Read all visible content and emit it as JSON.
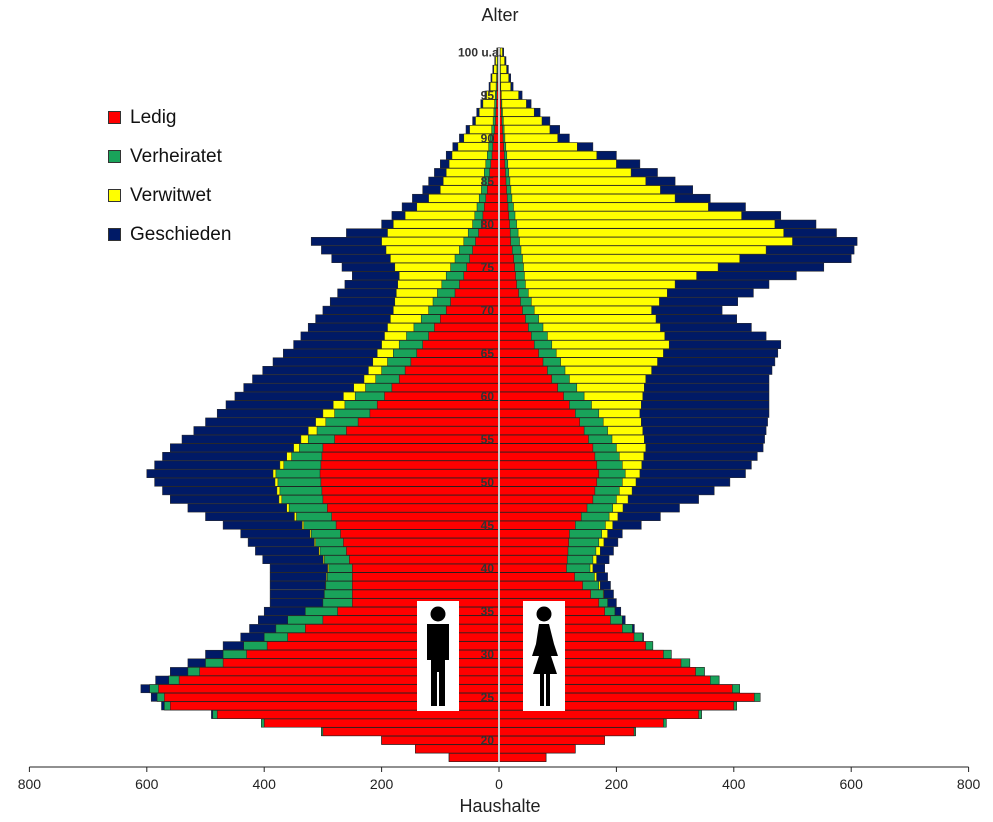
{
  "chart_data": {
    "type": "bar",
    "orientation": "horizontal-pyramid",
    "title": "Alter",
    "xlabel": "Haushalte",
    "ylabel": "Alter",
    "xlim": [
      -800,
      800
    ],
    "x_ticks": [
      -800,
      -600,
      -400,
      -200,
      0,
      200,
      400,
      600,
      800
    ],
    "x_tick_labels": [
      "800",
      "600",
      "400",
      "200",
      "0",
      "200",
      "400",
      "600",
      "800"
    ],
    "age_range": [
      18,
      100
    ],
    "age_tick_labels": [
      {
        "age": 100,
        "label": "100 u.a."
      },
      {
        "age": 95,
        "label": "95"
      },
      {
        "age": 90,
        "label": "90"
      },
      {
        "age": 85,
        "label": "85"
      },
      {
        "age": 80,
        "label": "80"
      },
      {
        "age": 75,
        "label": "75"
      },
      {
        "age": 70,
        "label": "70"
      },
      {
        "age": 65,
        "label": "65"
      },
      {
        "age": 60,
        "label": "60"
      },
      {
        "age": 55,
        "label": "55"
      },
      {
        "age": 50,
        "label": "50"
      },
      {
        "age": 45,
        "label": "45"
      },
      {
        "age": 40,
        "label": "40"
      },
      {
        "age": 35,
        "label": "35"
      },
      {
        "age": 30,
        "label": "30"
      },
      {
        "age": 25,
        "label": "25"
      },
      {
        "age": 20,
        "label": "20"
      }
    ],
    "series": [
      {
        "name": "Ledig",
        "color": "#ff0000"
      },
      {
        "name": "Verheiratet",
        "color": "#19a35a"
      },
      {
        "name": "Verwitwet",
        "color": "#ffff00"
      },
      {
        "name": "Geschieden",
        "color": "#001a66"
      }
    ],
    "legend_position": "top-left",
    "side_labels": {
      "left": "male",
      "right": "female"
    },
    "key_points_left": [
      {
        "age": 18,
        "Ledig": 85,
        "Verheiratet": 85,
        "Verwitwet": 85,
        "Geschieden": 85
      },
      {
        "age": 20,
        "Ledig": 200,
        "Verheiratet": 200,
        "Verwitwet": 200,
        "Geschieden": 200
      },
      {
        "age": 22,
        "Ledig": 400,
        "Verheiratet": 405,
        "Verwitwet": 405,
        "Geschieden": 405
      },
      {
        "age": 24,
        "Ledig": 560,
        "Verheiratet": 570,
        "Verwitwet": 570,
        "Geschieden": 575
      },
      {
        "age": 26,
        "Ledig": 580,
        "Verheiratet": 595,
        "Verwitwet": 595,
        "Geschieden": 610
      },
      {
        "age": 28,
        "Ledig": 510,
        "Verheiratet": 530,
        "Verwitwet": 530,
        "Geschieden": 560
      },
      {
        "age": 30,
        "Ledig": 430,
        "Verheiratet": 470,
        "Verwitwet": 470,
        "Geschieden": 500
      },
      {
        "age": 32,
        "Ledig": 360,
        "Verheiratet": 400,
        "Verwitwet": 400,
        "Geschieden": 440
      },
      {
        "age": 34,
        "Ledig": 300,
        "Verheiratet": 360,
        "Verwitwet": 360,
        "Geschieden": 410
      },
      {
        "age": 36,
        "Ledig": 250,
        "Verheiratet": 300,
        "Verwitwet": 300,
        "Geschieden": 390
      },
      {
        "age": 40,
        "Ledig": 250,
        "Verheiratet": 290,
        "Verwitwet": 292,
        "Geschieden": 390
      },
      {
        "age": 44,
        "Ledig": 270,
        "Verheiratet": 320,
        "Verwitwet": 322,
        "Geschieden": 440
      },
      {
        "age": 48,
        "Ledig": 300,
        "Verheiratet": 370,
        "Verwitwet": 375,
        "Geschieden": 560
      },
      {
        "age": 51,
        "Ledig": 305,
        "Verheiratet": 380,
        "Verwitwet": 385,
        "Geschieden": 600
      },
      {
        "age": 54,
        "Ledig": 300,
        "Verheiratet": 340,
        "Verwitwet": 350,
        "Geschieden": 560
      },
      {
        "age": 58,
        "Ledig": 220,
        "Verheiratet": 280,
        "Verwitwet": 300,
        "Geschieden": 480
      },
      {
        "age": 62,
        "Ledig": 170,
        "Verheiratet": 210,
        "Verwitwet": 230,
        "Geschieden": 420
      },
      {
        "age": 66,
        "Ledig": 130,
        "Verheiratet": 170,
        "Verwitwet": 200,
        "Geschieden": 350
      },
      {
        "age": 70,
        "Ledig": 90,
        "Verheiratet": 120,
        "Verwitwet": 180,
        "Geschieden": 300
      },
      {
        "age": 74,
        "Ledig": 60,
        "Verheiratet": 90,
        "Verwitwet": 170,
        "Geschieden": 250
      },
      {
        "age": 78,
        "Ledig": 40,
        "Verheiratet": 60,
        "Verwitwet": 200,
        "Geschieden": 320
      },
      {
        "age": 80,
        "Ledig": 30,
        "Verheiratet": 45,
        "Verwitwet": 180,
        "Geschieden": 200
      },
      {
        "age": 84,
        "Ledig": 20,
        "Verheiratet": 30,
        "Verwitwet": 100,
        "Geschieden": 130
      },
      {
        "age": 88,
        "Ledig": 12,
        "Verheiratet": 20,
        "Verwitwet": 80,
        "Geschieden": 90
      },
      {
        "age": 92,
        "Ledig": 6,
        "Verheiratet": 10,
        "Verwitwet": 40,
        "Geschieden": 45
      },
      {
        "age": 96,
        "Ledig": 3,
        "Verheiratet": 5,
        "Verwitwet": 15,
        "Geschieden": 17
      },
      {
        "age": 100,
        "Ledig": 1,
        "Verheiratet": 2,
        "Verwitwet": 3,
        "Geschieden": 4
      }
    ],
    "key_points_right": [
      {
        "age": 18,
        "Ledig": 80,
        "Verheiratet": 80,
        "Verwitwet": 80,
        "Geschieden": 80
      },
      {
        "age": 20,
        "Ledig": 180,
        "Verheiratet": 180,
        "Verwitwet": 180,
        "Geschieden": 180
      },
      {
        "age": 22,
        "Ledig": 280,
        "Verheiratet": 285,
        "Verwitwet": 285,
        "Geschieden": 285
      },
      {
        "age": 24,
        "Ledig": 400,
        "Verheiratet": 405,
        "Verwitwet": 405,
        "Geschieden": 405
      },
      {
        "age": 25,
        "Ledig": 435,
        "Verheiratet": 445,
        "Verwitwet": 445,
        "Geschieden": 445
      },
      {
        "age": 27,
        "Ledig": 360,
        "Verheiratet": 375,
        "Verwitwet": 375,
        "Geschieden": 375
      },
      {
        "age": 29,
        "Ledig": 310,
        "Verheiratet": 325,
        "Verwitwet": 325,
        "Geschieden": 325
      },
      {
        "age": 31,
        "Ledig": 250,
        "Verheiratet": 262,
        "Verwitwet": 262,
        "Geschieden": 262
      },
      {
        "age": 34,
        "Ledig": 190,
        "Verheiratet": 210,
        "Verwitwet": 210,
        "Geschieden": 215
      },
      {
        "age": 36,
        "Ledig": 170,
        "Verheiratet": 185,
        "Verwitwet": 185,
        "Geschieden": 200
      },
      {
        "age": 40,
        "Ledig": 115,
        "Verheiratet": 155,
        "Verwitwet": 160,
        "Geschieden": 180
      },
      {
        "age": 44,
        "Ledig": 120,
        "Verheiratet": 175,
        "Verwitwet": 185,
        "Geschieden": 210
      },
      {
        "age": 48,
        "Ledig": 160,
        "Verheiratet": 200,
        "Verwitwet": 220,
        "Geschieden": 340
      },
      {
        "age": 51,
        "Ledig": 170,
        "Verheiratet": 215,
        "Verwitwet": 240,
        "Geschieden": 420
      },
      {
        "age": 54,
        "Ledig": 160,
        "Verheiratet": 200,
        "Verwitwet": 250,
        "Geschieden": 450
      },
      {
        "age": 58,
        "Ledig": 130,
        "Verheiratet": 170,
        "Verwitwet": 240,
        "Geschieden": 460
      },
      {
        "age": 62,
        "Ledig": 90,
        "Verheiratet": 120,
        "Verwitwet": 250,
        "Geschieden": 460
      },
      {
        "age": 66,
        "Ledig": 60,
        "Verheiratet": 90,
        "Verwitwet": 290,
        "Geschieden": 480
      },
      {
        "age": 70,
        "Ledig": 40,
        "Verheiratet": 60,
        "Verwitwet": 260,
        "Geschieden": 380
      },
      {
        "age": 73,
        "Ledig": 30,
        "Verheiratet": 45,
        "Verwitwet": 300,
        "Geschieden": 460
      },
      {
        "age": 76,
        "Ledig": 25,
        "Verheiratet": 40,
        "Verwitwet": 410,
        "Geschieden": 600
      },
      {
        "age": 78,
        "Ledig": 20,
        "Verheiratet": 35,
        "Verwitwet": 500,
        "Geschieden": 610
      },
      {
        "age": 80,
        "Ledig": 18,
        "Verheiratet": 30,
        "Verwitwet": 470,
        "Geschieden": 540
      },
      {
        "age": 83,
        "Ledig": 14,
        "Verheiratet": 22,
        "Verwitwet": 300,
        "Geschieden": 360
      },
      {
        "age": 87,
        "Ledig": 10,
        "Verheiratet": 15,
        "Verwitwet": 200,
        "Geschieden": 240
      },
      {
        "age": 90,
        "Ledig": 7,
        "Verheiratet": 10,
        "Verwitwet": 100,
        "Geschieden": 120
      },
      {
        "age": 93,
        "Ledig": 4,
        "Verheiratet": 6,
        "Verwitwet": 60,
        "Geschieden": 70
      },
      {
        "age": 96,
        "Ledig": 2,
        "Verheiratet": 3,
        "Verwitwet": 20,
        "Geschieden": 24
      },
      {
        "age": 100,
        "Ledig": 1,
        "Verheiratet": 2,
        "Verwitwet": 6,
        "Geschieden": 8
      }
    ]
  }
}
